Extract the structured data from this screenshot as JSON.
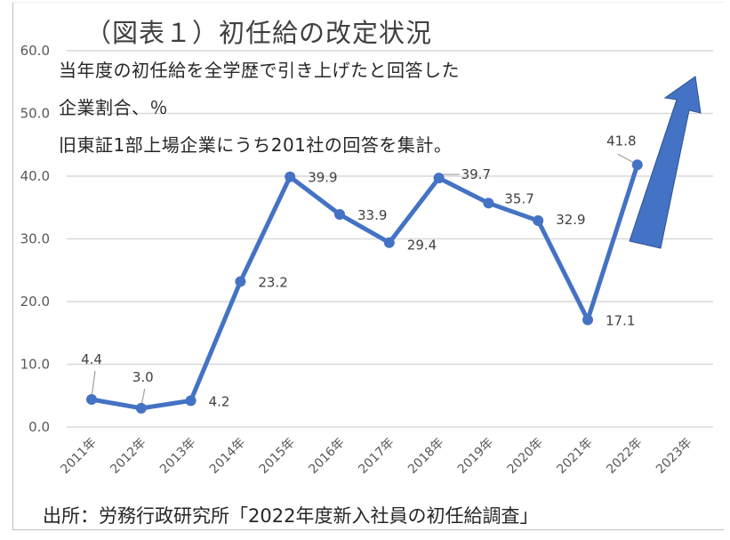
{
  "title": "（図表１）初任給の改定状況",
  "notes": [
    "当年度の初任給を全学歴で引き上げたと回答した",
    "企業割合、％",
    "旧東証1部上場企業にうち201社の回答を集計。"
  ],
  "source": "出所：労務行政研究所「2022年度新入社員の初任給調査」",
  "colors": {
    "line": "#4472c4",
    "arrow": "#4472c4",
    "arrow_border": "#2f528f",
    "grid": "#d9d9d9",
    "axis_text": "#595959"
  },
  "chart_data": {
    "type": "line",
    "title": "（図表１）初任給の改定状況",
    "xlabel": "",
    "ylabel": "",
    "ylim": [
      0,
      60
    ],
    "yticks": [
      "0.0",
      "10.0",
      "20.0",
      "30.0",
      "40.0",
      "50.0",
      "60.0"
    ],
    "grid": true,
    "legend": "none",
    "categories": [
      "2011年",
      "2012年",
      "2013年",
      "2014年",
      "2015年",
      "2016年",
      "2017年",
      "2018年",
      "2019年",
      "2020年",
      "2021年",
      "2022年",
      "2023年"
    ],
    "series": [
      {
        "name": "全学歴で引き上げた企業割合（％）",
        "values": [
          4.4,
          3.0,
          4.2,
          23.2,
          39.9,
          33.9,
          29.4,
          39.7,
          35.7,
          32.9,
          17.1,
          41.8,
          null
        ],
        "labels": [
          "4.4",
          "3.0",
          "4.2",
          "23.2",
          "39.9",
          "33.9",
          "29.4",
          "39.7",
          "35.7",
          "32.9",
          "17.1",
          "41.8",
          ""
        ]
      }
    ],
    "annotations": [
      "upward arrow after 2022 indicating rising trend"
    ]
  }
}
